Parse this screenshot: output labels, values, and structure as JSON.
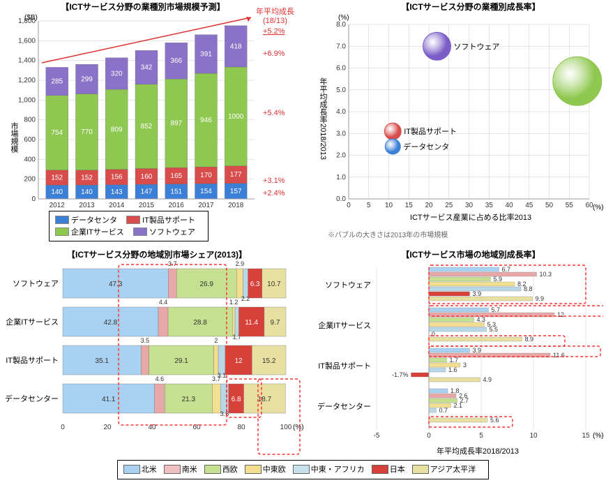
{
  "chart1": {
    "title": "【ICTサービス分野の業種別市場規模予測】",
    "y_label": "市場規模",
    "y_unit": "($B)",
    "y_max": 1800,
    "y_step": 200,
    "years": [
      "2012",
      "2013",
      "2014",
      "2015",
      "2016",
      "2017",
      "2018"
    ],
    "series": [
      {
        "name": "データセンタ",
        "color": "#3b7fd6",
        "values": [
          140,
          140,
          143,
          147,
          151,
          154,
          157
        ]
      },
      {
        "name": "IT製品サポート",
        "color": "#d84c4c",
        "values": [
          152,
          152,
          156,
          160,
          165,
          170,
          177
        ]
      },
      {
        "name": "企業ITサービス",
        "color": "#8fc850",
        "values": [
          754,
          770,
          809,
          852,
          897,
          946,
          1000
        ]
      },
      {
        "name": "ソフトウェア",
        "color": "#8a72c9",
        "values": [
          285,
          299,
          320,
          342,
          366,
          391,
          418
        ]
      }
    ],
    "growth_header": "年平均成長\n(18/13)",
    "growth_labels": [
      "+5.2%",
      "+6.9%",
      "+5.4%",
      "+3.1%",
      "+2.4%"
    ],
    "legend": [
      "データセンタ",
      "IT製品サポート",
      "企業ITサービス",
      "ソフトウェア"
    ]
  },
  "chart2": {
    "title": "【ICTサービス分野の業種別成長率】",
    "x_label": "ICTサービス産業に占める比率2013",
    "y_label": "年平均成長率2018/2013",
    "x_unit": "(%)",
    "y_unit": "(%)",
    "x_max": 60,
    "x_step": 5,
    "y_max": 8,
    "y_step": 1,
    "bubbles": [
      {
        "name": "ソフトウェア",
        "x": 22,
        "y": 7.0,
        "r": 20,
        "color": "#7a5dc7"
      },
      {
        "name": "企業ITサービス",
        "x": 57,
        "y": 5.4,
        "r": 35,
        "color": "#8fc850"
      },
      {
        "name": "IT製品サポート",
        "x": 11,
        "y": 3.1,
        "r": 12,
        "color": "#d84c4c"
      },
      {
        "name": "データセンタ",
        "x": 11,
        "y": 2.4,
        "r": 11,
        "color": "#3b7fd6"
      }
    ],
    "footnote": "※バブルの大きさは2013年の市場規模"
  },
  "chart3": {
    "title": "【ICTサービス分野の地域別市場シェア(2013)】",
    "categories": [
      "ソフトウェア",
      "企業ITサービス",
      "IT製品サポート",
      "データセンター"
    ],
    "regions": [
      "北米",
      "南米",
      "西欧",
      "中東欧",
      "中東・アフリカ",
      "日本",
      "アジア太平洋"
    ],
    "colors": [
      "#a8d1f2",
      "#e8a8a8",
      "#c4e090",
      "#f2e090",
      "#b8d8e8",
      "#d8403a",
      "#e8e0a0"
    ],
    "data": [
      [
        47.3,
        3.7,
        26.9,
        2.9,
        2.2,
        6.3,
        10.7
      ],
      [
        42.8,
        4.4,
        28.8,
        1.2,
        1.7,
        11.4,
        9.7
      ],
      [
        35.1,
        3.5,
        29.1,
        2.0,
        3.1,
        12.0,
        15.2
      ],
      [
        41.1,
        4.6,
        21.3,
        3.7,
        3.6,
        6.8,
        18.7
      ]
    ],
    "x_unit": "(%)",
    "x_max": 100,
    "x_step": 20
  },
  "chart4": {
    "title": "【ICTサービス市場の地域別成長率】",
    "categories": [
      "ソフトウェア",
      "企業ITサービス",
      "IT製品サポート",
      "データセンター"
    ],
    "data": [
      [
        6.7,
        10.3,
        5.9,
        8.2,
        8.8,
        3.9,
        9.9
      ],
      [
        5.7,
        12.0,
        4.3,
        5.3,
        5.5,
        0.0,
        8.9
      ],
      [
        3.9,
        11.6,
        1.7,
        3.0,
        1.6,
        -1.7,
        4.9
      ],
      [
        1.8,
        2.6,
        2.7,
        2.1,
        0.7,
        null,
        5.6
      ]
    ],
    "x_label": "年平均成長率2018/2013",
    "x_unit": "(%)",
    "x_min": -5,
    "x_max": 15,
    "x_step": 5
  },
  "regions_legend": {
    "items": [
      "北米",
      "南米",
      "西欧",
      "中東欧",
      "中東・アフリカ",
      "日本",
      "アジア太平洋"
    ],
    "colors": [
      "#a8d1f2",
      "#f0c0c0",
      "#c4e090",
      "#f2e090",
      "#c8e0ec",
      "#d8403a",
      "#e8e0a0"
    ]
  }
}
